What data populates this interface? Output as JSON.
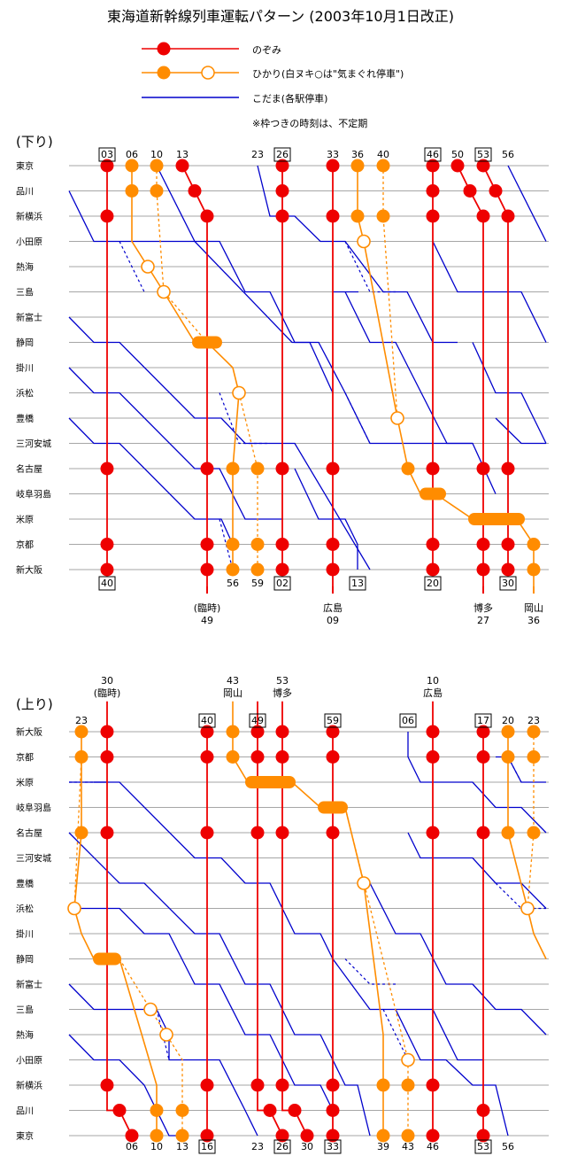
{
  "title": "東海道新幹線列車運転パターン (2003年10月1日改正)",
  "legend": [
    {
      "label": "のぞみ",
      "color": "#ee0000",
      "marker": "filled"
    },
    {
      "label": "ひかり(白ヌキ○は\"気まぐれ停車\")",
      "color": "#ff8c00",
      "marker": "filled+hollow"
    },
    {
      "label": "こだま(各駅停車)",
      "color": "#0000cc",
      "marker": "none"
    }
  ],
  "note": "※枠つきの時刻は、不定期",
  "colors": {
    "nozomi": "#ee0000",
    "hikari": "#ff8c00",
    "kodama": "#0000cc"
  },
  "down": {
    "heading": "(下り)",
    "stations": [
      "東京",
      "品川",
      "新横浜",
      "小田原",
      "熱海",
      "三島",
      "新富士",
      "静岡",
      "掛川",
      "浜松",
      "豊橋",
      "三河安城",
      "名古屋",
      "岐阜羽島",
      "米原",
      "京都",
      "新大阪"
    ],
    "dep_times": [
      {
        "t": "03",
        "boxed": true
      },
      {
        "t": "06",
        "boxed": false
      },
      {
        "t": "10",
        "boxed": false
      },
      {
        "t": "13",
        "boxed": false
      },
      {
        "t": "23",
        "boxed": false
      },
      {
        "t": "26",
        "boxed": true
      },
      {
        "t": "33",
        "boxed": false
      },
      {
        "t": "36",
        "boxed": false
      },
      {
        "t": "40",
        "boxed": false
      },
      {
        "t": "46",
        "boxed": true
      },
      {
        "t": "50",
        "boxed": false
      },
      {
        "t": "53",
        "boxed": true
      },
      {
        "t": "56",
        "boxed": false
      }
    ],
    "arr_times": [
      {
        "t": "40",
        "boxed": true
      },
      {
        "t": "56",
        "boxed": false
      },
      {
        "t": "59",
        "boxed": false
      },
      {
        "t": "02",
        "boxed": true
      },
      {
        "t": "13",
        "boxed": true
      },
      {
        "t": "20",
        "boxed": true
      },
      {
        "t": "30",
        "boxed": true
      }
    ],
    "extensions": [
      {
        "dest": "(臨時)",
        "time": "49"
      },
      {
        "dest": "広島",
        "time": "09"
      },
      {
        "dest": "博多",
        "time": "27"
      },
      {
        "dest": "岡山",
        "time": "36"
      }
    ]
  },
  "up": {
    "heading": "(上り)",
    "stations": [
      "新大阪",
      "京都",
      "米原",
      "岐阜羽島",
      "名古屋",
      "三河安城",
      "豊橋",
      "浜松",
      "掛川",
      "静岡",
      "新富士",
      "三島",
      "熱海",
      "小田原",
      "新横浜",
      "品川",
      "東京"
    ],
    "origins": [
      {
        "time": "30",
        "dest": "(臨時)"
      },
      {
        "time": "43",
        "dest": "岡山"
      },
      {
        "time": "53",
        "dest": "博多"
      },
      {
        "time": "10",
        "dest": "広島"
      }
    ],
    "dep_times": [
      {
        "t": "23",
        "boxed": false
      },
      {
        "t": "40",
        "boxed": true
      },
      {
        "t": "49",
        "boxed": true
      },
      {
        "t": "59",
        "boxed": true
      },
      {
        "t": "06",
        "boxed": true
      },
      {
        "t": "17",
        "boxed": true
      },
      {
        "t": "20",
        "boxed": false
      },
      {
        "t": "23",
        "boxed": false
      }
    ],
    "arr_times": [
      {
        "t": "06",
        "boxed": false
      },
      {
        "t": "10",
        "boxed": false
      },
      {
        "t": "13",
        "boxed": false
      },
      {
        "t": "16",
        "boxed": true
      },
      {
        "t": "23",
        "boxed": false
      },
      {
        "t": "26",
        "boxed": true
      },
      {
        "t": "30",
        "boxed": false
      },
      {
        "t": "33",
        "boxed": true
      },
      {
        "t": "39",
        "boxed": false
      },
      {
        "t": "43",
        "boxed": false
      },
      {
        "t": "46",
        "boxed": false
      },
      {
        "t": "53",
        "boxed": true
      },
      {
        "t": "56",
        "boxed": false
      }
    ]
  }
}
